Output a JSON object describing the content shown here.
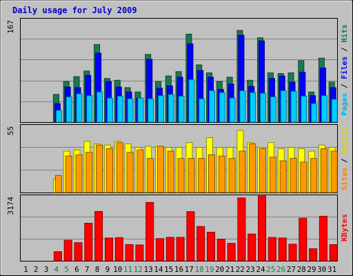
{
  "chart_data": [
    {
      "type": "bar",
      "title": "Daily usage for July 2009",
      "panel": "hits-files-pages",
      "y_max_label": "167",
      "ylim": [
        0,
        167
      ],
      "categories": [
        "1",
        "2",
        "3",
        "4",
        "5",
        "6",
        "7",
        "8",
        "9",
        "10",
        "11",
        "12",
        "13",
        "14",
        "15",
        "16",
        "17",
        "18",
        "19",
        "20",
        "21",
        "22",
        "23",
        "24",
        "25",
        "26",
        "27",
        "28",
        "29",
        "30",
        "31"
      ],
      "weekend_days": [
        "4",
        "5",
        "11",
        "12",
        "18",
        "19",
        "25",
        "26"
      ],
      "right_label": {
        "parts": [
          {
            "text": "Pages",
            "color": "#00b0f0"
          },
          {
            "text": " / ",
            "color": "#000000"
          },
          {
            "text": "Files",
            "color": "#0000ff"
          },
          {
            "text": " / ",
            "color": "#000000"
          },
          {
            "text": "Hits",
            "color": "#008060"
          }
        ]
      },
      "series": [
        {
          "name": "Hits",
          "color": "#1a7a50",
          "values": [
            0,
            0,
            0,
            45,
            66,
            74,
            83,
            126,
            71,
            68,
            56,
            49,
            110,
            66,
            75,
            82,
            143,
            93,
            80,
            66,
            73,
            149,
            68,
            137,
            80,
            79,
            80,
            100,
            49,
            104,
            65
          ]
        },
        {
          "name": "Files",
          "color": "#0000ff",
          "values": [
            0,
            0,
            0,
            30,
            57,
            56,
            76,
            112,
            66,
            57,
            49,
            39,
            102,
            55,
            59,
            73,
            127,
            84,
            73,
            53,
            62,
            141,
            58,
            132,
            71,
            75,
            65,
            81,
            43,
            88,
            56
          ]
        },
        {
          "name": "Pages",
          "color": "#00ccff",
          "values": [
            0,
            0,
            0,
            19,
            41,
            46,
            43,
            49,
            39,
            42,
            38,
            39,
            38,
            43,
            45,
            42,
            69,
            38,
            51,
            48,
            39,
            51,
            48,
            47,
            41,
            51,
            50,
            42,
            30,
            43,
            37
          ]
        }
      ]
    },
    {
      "type": "bar",
      "panel": "visits-sites",
      "y_max_label": "55",
      "ylim": [
        0,
        55
      ],
      "categories": [
        "1",
        "2",
        "3",
        "4",
        "5",
        "6",
        "7",
        "8",
        "9",
        "10",
        "11",
        "12",
        "13",
        "14",
        "15",
        "16",
        "17",
        "18",
        "19",
        "20",
        "21",
        "22",
        "23",
        "24",
        "25",
        "26",
        "27",
        "28",
        "29",
        "30",
        "31"
      ],
      "right_label": {
        "parts": [
          {
            "text": "Sites",
            "color": "#ff8000"
          },
          {
            "text": " / ",
            "color": "#000000"
          },
          {
            "text": "Visits",
            "color": "#e0d000"
          }
        ]
      },
      "series": [
        {
          "name": "Visits",
          "color": "#ffff00",
          "values": [
            0,
            0,
            0,
            11,
            34,
            35,
            42,
            40,
            39,
            42,
            40,
            37,
            38,
            38,
            37,
            37,
            41,
            37,
            45,
            37,
            37,
            51,
            41,
            37,
            41,
            36,
            37,
            36,
            34,
            39,
            37
          ]
        },
        {
          "name": "Sites",
          "color": "#ff9900",
          "values": [
            0,
            0,
            0,
            14,
            30,
            31,
            33,
            39,
            36,
            41,
            33,
            35,
            28,
            38,
            34,
            28,
            28,
            28,
            31,
            30,
            28,
            34,
            40,
            36,
            29,
            26,
            28,
            25,
            28,
            36,
            34
          ]
        }
      ]
    },
    {
      "type": "bar",
      "panel": "kbytes",
      "y_max_label": "3174",
      "ylim": [
        0,
        3174
      ],
      "categories": [
        "1",
        "2",
        "3",
        "4",
        "5",
        "6",
        "7",
        "8",
        "9",
        "10",
        "11",
        "12",
        "13",
        "14",
        "15",
        "16",
        "17",
        "18",
        "19",
        "20",
        "21",
        "22",
        "23",
        "24",
        "25",
        "26",
        "27",
        "28",
        "29",
        "30",
        "31"
      ],
      "right_label": {
        "parts": [
          {
            "text": "KBytes",
            "color": "#ff0000"
          }
        ]
      },
      "series": [
        {
          "name": "KBytes",
          "color": "#ff0000",
          "values": [
            0,
            0,
            0,
            448,
            1006,
            889,
            1840,
            2414,
            1116,
            1136,
            798,
            777,
            2855,
            1088,
            1147,
            1148,
            2407,
            1682,
            1401,
            1059,
            854,
            3081,
            1309,
            3174,
            1143,
            1118,
            814,
            2084,
            590,
            2181,
            792
          ]
        }
      ]
    }
  ]
}
